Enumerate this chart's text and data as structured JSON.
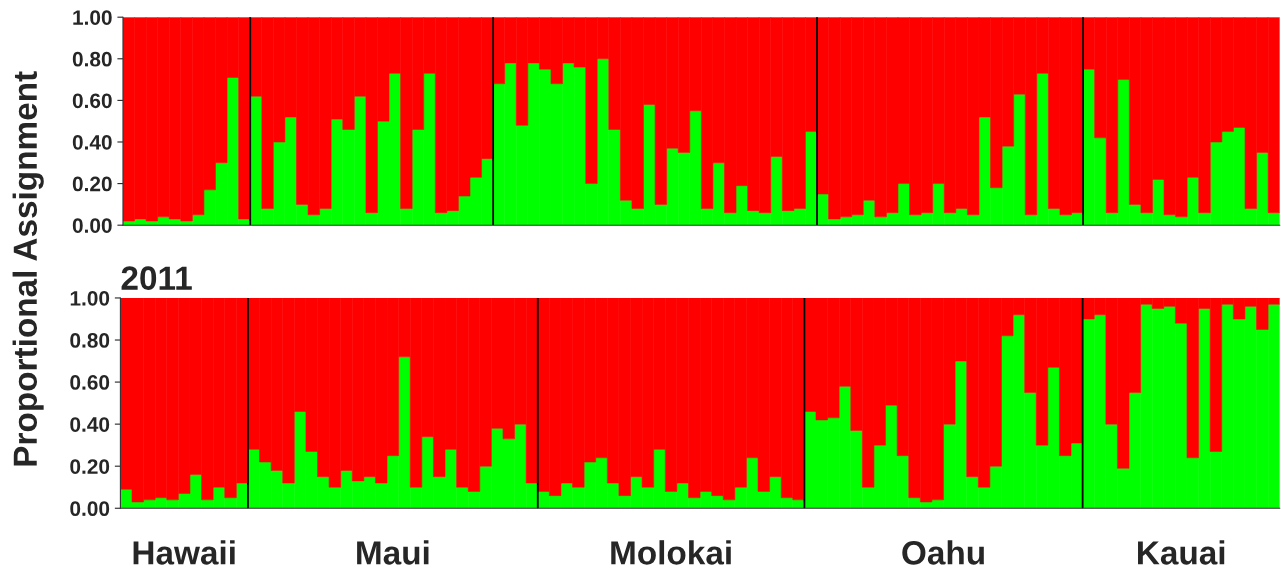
{
  "chart_data": [
    {
      "type": "bar",
      "stacked": true,
      "ylabel": "Proportional Assignment",
      "categories": [
        null,
        null,
        null,
        null,
        null,
        null,
        null,
        null,
        null,
        null,
        null,
        null,
        null,
        null,
        null,
        null,
        null,
        null,
        null,
        null,
        null,
        null,
        null,
        null,
        null,
        null,
        null,
        null,
        null,
        null,
        null,
        null,
        null,
        null,
        null,
        null,
        null,
        null,
        null,
        null,
        null,
        null,
        null,
        null,
        null,
        null,
        null,
        null,
        null,
        null,
        null,
        null,
        null,
        null,
        null,
        null,
        null,
        null,
        null,
        null,
        null,
        null,
        null,
        null,
        null,
        null,
        null,
        null,
        null,
        null,
        null,
        null,
        null,
        null,
        null,
        null,
        null,
        null,
        null,
        null,
        null,
        null,
        null,
        null,
        null,
        null,
        null,
        null,
        null,
        null,
        null,
        null,
        null,
        null,
        null,
        null,
        null,
        null,
        null,
        null
      ],
      "series": [
        {
          "color": "#00ff00",
          "values": [
            0.02,
            0.03,
            0.02,
            0.04,
            0.03,
            0.02,
            0.05,
            0.17,
            0.3,
            0.71,
            0.03,
            0.62,
            0.08,
            0.4,
            0.52,
            0.1,
            0.05,
            0.08,
            0.51,
            0.46,
            0.62,
            0.06,
            0.5,
            0.73,
            0.08,
            0.46,
            0.73,
            0.06,
            0.07,
            0.14,
            0.23,
            0.32,
            0.68,
            0.78,
            0.48,
            0.78,
            0.75,
            0.68,
            0.78,
            0.76,
            0.2,
            0.8,
            0.46,
            0.12,
            0.08,
            0.58,
            0.1,
            0.37,
            0.35,
            0.55,
            0.08,
            0.3,
            0.06,
            0.19,
            0.07,
            0.06,
            0.33,
            0.07,
            0.08,
            0.45,
            0.15,
            0.03,
            0.04,
            0.05,
            0.12,
            0.04,
            0.06,
            0.2,
            0.05,
            0.06,
            0.2,
            0.06,
            0.08,
            0.05,
            0.52,
            0.18,
            0.38,
            0.63,
            0.05,
            0.73,
            0.08,
            0.05,
            0.06,
            0.75,
            0.42,
            0.06,
            0.7,
            0.1,
            0.06,
            0.22,
            0.05,
            0.04,
            0.23,
            0.06,
            0.4,
            0.45,
            0.47,
            0.08,
            0.35,
            0.06
          ]
        },
        {
          "color": "#ff0000",
          "values": [
            0.98,
            0.97,
            0.98,
            0.96,
            0.97,
            0.98,
            0.95,
            0.83,
            0.7,
            0.29,
            0.97,
            0.38,
            0.92,
            0.6,
            0.48,
            0.9,
            0.95,
            0.92,
            0.49,
            0.54,
            0.38,
            0.94,
            0.5,
            0.27,
            0.92,
            0.54,
            0.27,
            0.94,
            0.93,
            0.86,
            0.77,
            0.68,
            0.32,
            0.22,
            0.52,
            0.22,
            0.25,
            0.32,
            0.22,
            0.24,
            0.8,
            0.2,
            0.54,
            0.88,
            0.92,
            0.42,
            0.9,
            0.63,
            0.65,
            0.45,
            0.92,
            0.7,
            0.94,
            0.81,
            0.93,
            0.94,
            0.67,
            0.93,
            0.92,
            0.55,
            0.85,
            0.97,
            0.96,
            0.95,
            0.88,
            0.96,
            0.94,
            0.8,
            0.95,
            0.94,
            0.8,
            0.94,
            0.92,
            0.95,
            0.48,
            0.82,
            0.62,
            0.37,
            0.95,
            0.27,
            0.92,
            0.95,
            0.94,
            0.25,
            0.58,
            0.94,
            0.3,
            0.9,
            0.94,
            0.78,
            0.95,
            0.96,
            0.77,
            0.94,
            0.6,
            0.55,
            0.53,
            0.92,
            0.65,
            0.94
          ]
        }
      ],
      "ylim": [
        0,
        1
      ],
      "yticks": [
        {
          "value": 0,
          "label": "0.00"
        },
        {
          "value": 0.2,
          "label": "0.20"
        },
        {
          "value": 0.4,
          "label": "0.40"
        },
        {
          "value": 0.6,
          "label": "0.60"
        },
        {
          "value": 0.8,
          "label": "0.80"
        },
        {
          "value": 1,
          "label": "1.00"
        }
      ],
      "grid": false,
      "legend": false
    },
    {
      "type": "bar",
      "stacked": true,
      "title": "2011",
      "categories": [
        null,
        null,
        null,
        null,
        null,
        null,
        null,
        null,
        null,
        null,
        null,
        null,
        null,
        null,
        null,
        null,
        null,
        null,
        null,
        null,
        null,
        null,
        null,
        null,
        null,
        null,
        null,
        null,
        null,
        null,
        null,
        null,
        null,
        null,
        null,
        null,
        null,
        null,
        null,
        null,
        null,
        null,
        null,
        null,
        null,
        null,
        null,
        null,
        null,
        null,
        null,
        null,
        null,
        null,
        null,
        null,
        null,
        null,
        null,
        null,
        null,
        null,
        null,
        null,
        null,
        null,
        null,
        null,
        null,
        null,
        null,
        null,
        null,
        null,
        null,
        null,
        null,
        null,
        null,
        null,
        null,
        null,
        null,
        null,
        null,
        null,
        null,
        null,
        null,
        null,
        null,
        null,
        null,
        null,
        null,
        null,
        null,
        null,
        null,
        null
      ],
      "annotations": [
        "Hawaii",
        "Maui",
        "Molokai",
        "Oahu",
        "Kauai"
      ],
      "series": [
        {
          "color": "#00ff00",
          "values": [
            0.09,
            0.03,
            0.04,
            0.05,
            0.04,
            0.07,
            0.16,
            0.04,
            0.1,
            0.05,
            0.12,
            0.28,
            0.22,
            0.18,
            0.12,
            0.46,
            0.27,
            0.15,
            0.1,
            0.18,
            0.13,
            0.15,
            0.12,
            0.25,
            0.72,
            0.1,
            0.34,
            0.15,
            0.28,
            0.1,
            0.08,
            0.2,
            0.38,
            0.33,
            0.4,
            0.12,
            0.08,
            0.06,
            0.12,
            0.1,
            0.22,
            0.24,
            0.12,
            0.06,
            0.15,
            0.1,
            0.28,
            0.08,
            0.12,
            0.05,
            0.08,
            0.06,
            0.04,
            0.1,
            0.24,
            0.08,
            0.15,
            0.05,
            0.04,
            0.46,
            0.42,
            0.43,
            0.58,
            0.37,
            0.1,
            0.3,
            0.49,
            0.25,
            0.05,
            0.03,
            0.04,
            0.4,
            0.7,
            0.15,
            0.1,
            0.2,
            0.82,
            0.92,
            0.55,
            0.3,
            0.67,
            0.25,
            0.31,
            0.9,
            0.92,
            0.4,
            0.19,
            0.55,
            0.97,
            0.95,
            0.96,
            0.88,
            0.24,
            0.95,
            0.27,
            0.97,
            0.9,
            0.96,
            0.85,
            0.97
          ]
        },
        {
          "color": "#ff0000",
          "values": [
            0.91,
            0.97,
            0.96,
            0.95,
            0.96,
            0.93,
            0.84,
            0.96,
            0.9,
            0.95,
            0.88,
            0.72,
            0.78,
            0.82,
            0.88,
            0.54,
            0.73,
            0.85,
            0.9,
            0.82,
            0.87,
            0.85,
            0.88,
            0.75,
            0.28,
            0.9,
            0.66,
            0.85,
            0.72,
            0.9,
            0.92,
            0.8,
            0.62,
            0.67,
            0.6,
            0.88,
            0.92,
            0.94,
            0.88,
            0.9,
            0.78,
            0.76,
            0.88,
            0.94,
            0.85,
            0.9,
            0.72,
            0.92,
            0.88,
            0.95,
            0.92,
            0.94,
            0.96,
            0.9,
            0.76,
            0.92,
            0.85,
            0.95,
            0.96,
            0.54,
            0.58,
            0.57,
            0.42,
            0.63,
            0.9,
            0.7,
            0.51,
            0.75,
            0.95,
            0.97,
            0.96,
            0.6,
            0.3,
            0.85,
            0.9,
            0.8,
            0.18,
            0.08,
            0.45,
            0.7,
            0.33,
            0.75,
            0.69,
            0.1,
            0.08,
            0.6,
            0.81,
            0.45,
            0.03,
            0.05,
            0.04,
            0.12,
            0.76,
            0.05,
            0.73,
            0.03,
            0.1,
            0.04,
            0.15,
            0.03
          ]
        }
      ],
      "ylim": [
        0,
        1
      ],
      "yticks": [
        {
          "value": 0,
          "label": "0.00"
        },
        {
          "value": 0.2,
          "label": "0.20"
        },
        {
          "value": 0.4,
          "label": "0.40"
        },
        {
          "value": 0.6,
          "label": "0.60"
        },
        {
          "value": 0.8,
          "label": "0.80"
        },
        {
          "value": 1,
          "label": "1.00"
        }
      ],
      "grid": false,
      "legend": false
    }
  ]
}
